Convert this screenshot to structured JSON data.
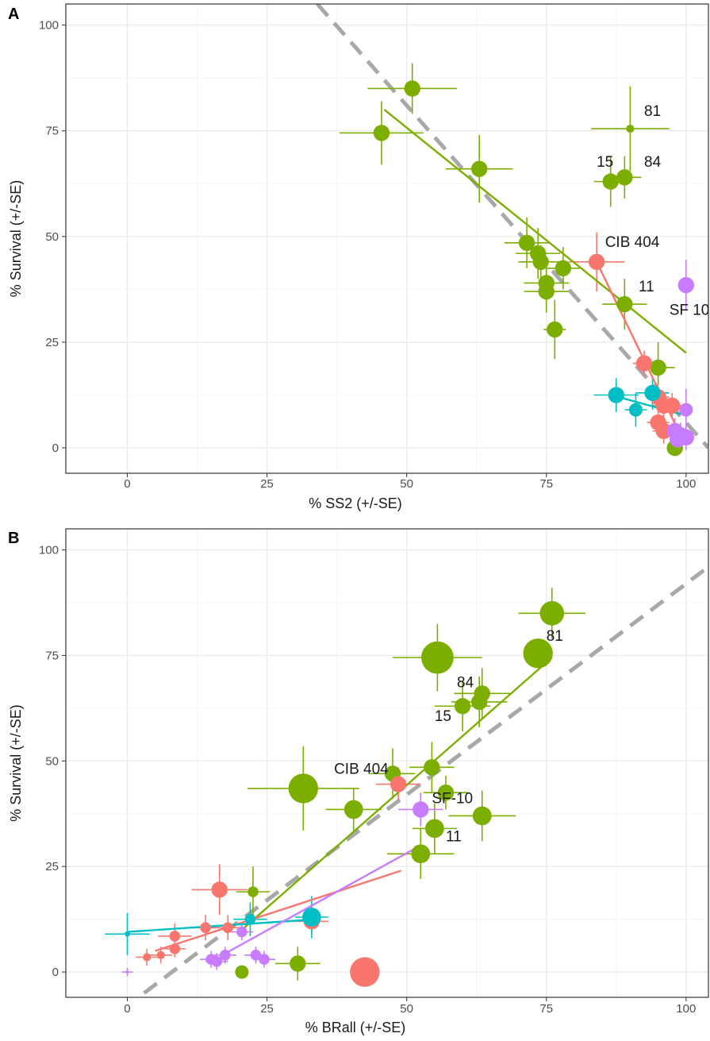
{
  "colors": {
    "green": "#7CAE00",
    "red": "#F8766D",
    "cyan": "#00BFC4",
    "purple": "#C77CFF",
    "dashed": "#a8a8a8",
    "grid": "#ebebeb",
    "panel_border": "#333333"
  },
  "chart_data": [
    {
      "panel": "A",
      "type": "scatter",
      "xlabel": "% SS2 (+/-SE)",
      "ylabel": "% Survival (+/-SE)",
      "xlim": [
        -11,
        104
      ],
      "ylim": [
        -6,
        105
      ],
      "xticks": [
        0,
        25,
        50,
        75,
        100
      ],
      "yticks": [
        0,
        25,
        50,
        75,
        100
      ],
      "grid": true,
      "legend": "none",
      "reference_line": {
        "style": "dashed",
        "x": [
          34,
          104
        ],
        "y": [
          105,
          0
        ]
      },
      "series": [
        {
          "color_key": "green",
          "points": [
            [
              45.5,
              74.5,
              6,
              7.5,
              7.5
            ],
            [
              51,
              85,
              6,
              8,
              6
            ],
            [
              63,
              66,
              6,
              6,
              8
            ],
            [
              71.5,
              48.5,
              6,
              4,
              6
            ],
            [
              73.5,
              46,
              6,
              4,
              6
            ],
            [
              74,
              44,
              6,
              4,
              4
            ],
            [
              75,
              39,
              6,
              4,
              6
            ],
            [
              75,
              37,
              6,
              4,
              5
            ],
            [
              78,
              42.5,
              6,
              3,
              5
            ],
            [
              76.5,
              28,
              6,
              2,
              7
            ],
            [
              86.5,
              63,
              6,
              3,
              6
            ],
            [
              89,
              64,
              6,
              3,
              5
            ],
            [
              90,
              75.5,
              3,
              7,
              10
            ],
            [
              89,
              34,
              6,
              4,
              6
            ],
            [
              95,
              19,
              6,
              3,
              6
            ],
            [
              98,
              0,
              6,
              1,
              1
            ]
          ],
          "fit": {
            "x": [
              46,
              100
            ],
            "y": [
              80,
              22.5
            ]
          }
        },
        {
          "color_key": "red",
          "points": [
            [
              84,
              44,
              6,
              5,
              7
            ],
            [
              92.5,
              20,
              6,
              2,
              3
            ],
            [
              95,
              12,
              6,
              2,
              3
            ],
            [
              96,
              10,
              6,
              2,
              3
            ],
            [
              97.5,
              10,
              6,
              2,
              3
            ],
            [
              95,
              6,
              6,
              2,
              3
            ],
            [
              96,
              4,
              6,
              2,
              3
            ]
          ],
          "fit": {
            "x": [
              84,
              99
            ],
            "y": [
              44,
              3
            ]
          }
        },
        {
          "color_key": "cyan",
          "points": [
            [
              87.5,
              12.5,
              6,
              4,
              4
            ],
            [
              91,
              9,
              5,
              2,
              4
            ],
            [
              94,
              13,
              6,
              3,
              4
            ]
          ],
          "fit": {
            "x": [
              88,
              99
            ],
            "y": [
              12,
              8
            ]
          }
        },
        {
          "color_key": "purple",
          "points": [
            [
              100,
              38.5,
              6,
              1,
              6
            ],
            [
              100,
              9,
              5,
              1,
              5
            ],
            [
              98,
              4,
              6,
              1,
              3
            ],
            [
              99,
              3,
              6,
              1,
              3
            ],
            [
              100,
              2.5,
              6,
              1,
              3
            ],
            [
              98.5,
              2,
              6,
              1,
              2
            ]
          ],
          "fit": null
        }
      ],
      "annotations": [
        {
          "text": "81",
          "x": 92.5,
          "y": 78.5,
          "anchor": "start"
        },
        {
          "text": "15",
          "x": 87,
          "y": 66.5,
          "anchor": "end"
        },
        {
          "text": "84",
          "x": 92.5,
          "y": 66.5,
          "anchor": "start"
        },
        {
          "text": "CIB 404",
          "x": 85.5,
          "y": 47.5,
          "anchor": "start"
        },
        {
          "text": "11",
          "x": 91.5,
          "y": 37,
          "anchor": "start"
        },
        {
          "text": "SF 10",
          "x": 97,
          "y": 31.5,
          "anchor": "start"
        }
      ]
    },
    {
      "panel": "B",
      "type": "scatter",
      "xlabel": "% BRall (+/-SE)",
      "ylabel": "% Survival (+/-SE)",
      "xlim": [
        -11,
        104
      ],
      "ylim": [
        -6,
        105
      ],
      "xticks": [
        0,
        25,
        50,
        75,
        100
      ],
      "yticks": [
        0,
        25,
        50,
        75,
        100
      ],
      "grid": true,
      "legend": "none",
      "reference_line": {
        "style": "dashed",
        "x": [
          3,
          104
        ],
        "y": [
          -5,
          96
        ]
      },
      "series": [
        {
          "color_key": "green",
          "points": [
            [
              76,
              85,
              9,
              6,
              6
            ],
            [
              73.5,
              75.5,
              11,
              1,
              1
            ],
            [
              55.5,
              74.5,
              12,
              8,
              8
            ],
            [
              63.5,
              66,
              6,
              5,
              6
            ],
            [
              63,
              64,
              6,
              5,
              6
            ],
            [
              60,
              63,
              6,
              5,
              6
            ],
            [
              47.5,
              47,
              6,
              4,
              6
            ],
            [
              54.5,
              48.5,
              6,
              4,
              6
            ],
            [
              31.5,
              43.5,
              11,
              10,
              10
            ],
            [
              40.5,
              38.5,
              7,
              5,
              5
            ],
            [
              57,
              42.5,
              6,
              4,
              4
            ],
            [
              63.5,
              37,
              7,
              6,
              6
            ],
            [
              55,
              34,
              7,
              4,
              6
            ],
            [
              52.5,
              28,
              7,
              6,
              6
            ],
            [
              22.5,
              19,
              4,
              3,
              6
            ],
            [
              30.5,
              2,
              6,
              4,
              4
            ],
            [
              20.5,
              0,
              5,
              1,
              1
            ]
          ],
          "fit": {
            "x": [
              20.5,
              76
            ],
            "y": [
              10,
              74.5
            ]
          }
        },
        {
          "color_key": "red",
          "points": [
            [
              48.5,
              44.5,
              6,
              4,
              4
            ],
            [
              16.5,
              19.5,
              6,
              5,
              6
            ],
            [
              14,
              10.5,
              4,
              3,
              3
            ],
            [
              18,
              10.5,
              4,
              3,
              3
            ],
            [
              33,
              12,
              6,
              3,
              3
            ],
            [
              8.5,
              8.5,
              4,
              3,
              3
            ],
            [
              8.5,
              5.5,
              4,
              2,
              2
            ],
            [
              6,
              4,
              3,
              2,
              2
            ],
            [
              3.5,
              3.5,
              3,
              2,
              2
            ],
            [
              42.5,
              0,
              11,
              1,
              1
            ]
          ],
          "fit": {
            "x": [
              5,
              49
            ],
            "y": [
              5,
              24
            ]
          }
        },
        {
          "color_key": "cyan",
          "points": [
            [
              0,
              9,
              2,
              4,
              5
            ],
            [
              22,
              12.5,
              4,
              3,
              4
            ],
            [
              33,
              13,
              7,
              3,
              5
            ]
          ],
          "fit": {
            "x": [
              0,
              34
            ],
            "y": [
              9.5,
              12.5
            ]
          }
        },
        {
          "color_key": "purple",
          "points": [
            [
              52.5,
              38.5,
              6,
              4,
              4
            ],
            [
              20.5,
              9.5,
              4,
              2,
              2
            ],
            [
              17.5,
              4,
              4,
              2,
              2
            ],
            [
              23,
              4,
              4,
              2,
              2
            ],
            [
              15,
              3,
              4,
              2,
              2
            ],
            [
              24.5,
              3,
              4,
              2,
              2
            ],
            [
              16,
              2.5,
              4,
              2,
              2
            ],
            [
              0,
              0,
              1,
              1,
              1
            ]
          ],
          "fit": {
            "x": [
              17,
              52.5
            ],
            "y": [
              4,
              30
            ]
          }
        }
      ],
      "annotations": [
        {
          "text": "81",
          "x": 75,
          "y": 78.5,
          "anchor": "start"
        },
        {
          "text": "84",
          "x": 59,
          "y": 67.5,
          "anchor": "start"
        },
        {
          "text": "15",
          "x": 55,
          "y": 59.5,
          "anchor": "start"
        },
        {
          "text": "CIB 404",
          "x": 37,
          "y": 47,
          "anchor": "start"
        },
        {
          "text": "SF-10",
          "x": 54.5,
          "y": 40,
          "anchor": "start"
        },
        {
          "text": "11",
          "x": 57,
          "y": 31,
          "anchor": "start"
        }
      ]
    }
  ]
}
